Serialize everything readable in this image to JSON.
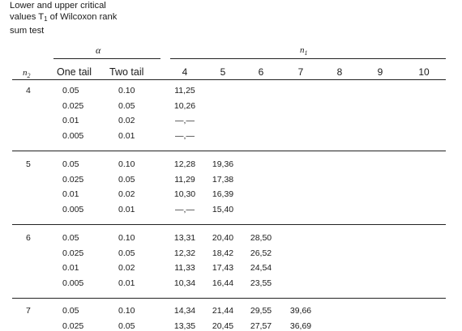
{
  "caption": {
    "line1": "Lower and upper critical",
    "line2_pre": "values T",
    "line2_sub": "1",
    "line2_post": " of Wilcoxon rank",
    "line3": "sum test"
  },
  "headers": {
    "alpha": "α",
    "n1": "n",
    "n1_sub": "1",
    "n2": "n",
    "n2_sub": "2",
    "one_tail": "One tail",
    "two_tail": "Two tail",
    "n1_values": [
      "4",
      "5",
      "6",
      "7",
      "8",
      "9",
      "10"
    ]
  },
  "groups": [
    {
      "n2": "4",
      "rows": [
        {
          "one": "0.05",
          "two": "0.10",
          "vals": [
            "11,25",
            "",
            "",
            "",
            "",
            "",
            ""
          ]
        },
        {
          "one": "0.025",
          "two": "0.05",
          "vals": [
            "10,26",
            "",
            "",
            "",
            "",
            "",
            ""
          ]
        },
        {
          "one": "0.01",
          "two": "0.02",
          "vals": [
            "—,—",
            "",
            "",
            "",
            "",
            "",
            ""
          ]
        },
        {
          "one": "0.005",
          "two": "0.01",
          "vals": [
            "—,—",
            "",
            "",
            "",
            "",
            "",
            ""
          ]
        }
      ]
    },
    {
      "n2": "5",
      "rows": [
        {
          "one": "0.05",
          "two": "0.10",
          "vals": [
            "12,28",
            "19,36",
            "",
            "",
            "",
            "",
            ""
          ]
        },
        {
          "one": "0.025",
          "two": "0.05",
          "vals": [
            "11,29",
            "17,38",
            "",
            "",
            "",
            "",
            ""
          ]
        },
        {
          "one": "0.01",
          "two": "0.02",
          "vals": [
            "10,30",
            "16,39",
            "",
            "",
            "",
            "",
            ""
          ]
        },
        {
          "one": "0.005",
          "two": "0.01",
          "vals": [
            "—,—",
            "15,40",
            "",
            "",
            "",
            "",
            ""
          ]
        }
      ]
    },
    {
      "n2": "6",
      "rows": [
        {
          "one": "0.05",
          "two": "0.10",
          "vals": [
            "13,31",
            "20,40",
            "28,50",
            "",
            "",
            "",
            ""
          ]
        },
        {
          "one": "0.025",
          "two": "0.05",
          "vals": [
            "12,32",
            "18,42",
            "26,52",
            "",
            "",
            "",
            ""
          ]
        },
        {
          "one": "0.01",
          "two": "0.02",
          "vals": [
            "11,33",
            "17,43",
            "24,54",
            "",
            "",
            "",
            ""
          ]
        },
        {
          "one": "0.005",
          "two": "0.01",
          "vals": [
            "10,34",
            "16,44",
            "23,55",
            "",
            "",
            "",
            ""
          ]
        }
      ]
    },
    {
      "n2": "7",
      "rows": [
        {
          "one": "0.05",
          "two": "0.10",
          "vals": [
            "14,34",
            "21,44",
            "29,55",
            "39,66",
            "",
            "",
            ""
          ]
        },
        {
          "one": "0.025",
          "two": "0.05",
          "vals": [
            "13,35",
            "20,45",
            "27,57",
            "36,69",
            "",
            "",
            ""
          ]
        }
      ]
    }
  ]
}
